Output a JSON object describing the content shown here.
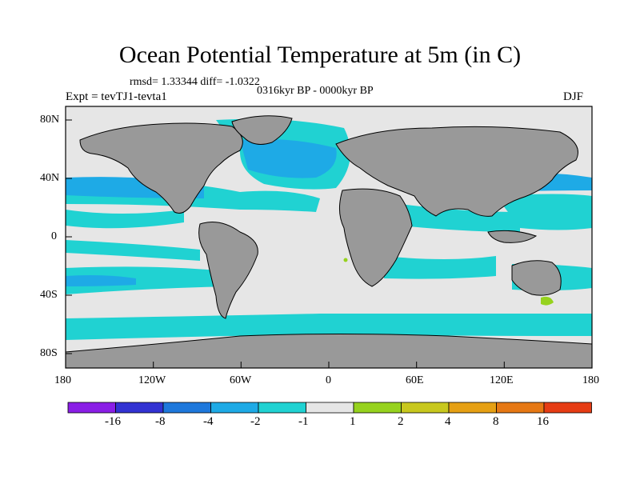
{
  "header": {
    "title": "Ocean Potential Temperature at 5m (in C)",
    "stats": "rmsd= 1.33344 diff= -1.0322",
    "period": "0316kyr BP - 0000kyr BP",
    "experiment": "Expt = tevTJ1-tevta1",
    "season": "DJF"
  },
  "axes": {
    "x_ticks": [
      "180",
      "120W",
      "60W",
      "0",
      "60E",
      "120E",
      "180"
    ],
    "y_ticks": [
      "80N",
      "40N",
      "0",
      "40S",
      "80S"
    ]
  },
  "colorbar": {
    "labels": [
      "-16",
      "-8",
      "-4",
      "-2",
      "-1",
      "1",
      "2",
      "4",
      "8",
      "16"
    ],
    "colors": [
      "#8a1ee6",
      "#3232d2",
      "#1e78dc",
      "#1eaae6",
      "#20d2d2",
      "#e6e6e6",
      "#96d21e",
      "#c8c81e",
      "#e6a014",
      "#e67814",
      "#e63c14"
    ]
  },
  "map_colors": {
    "land": "#999999",
    "neutral": "#e6e6e6",
    "cool_light": "#20d2d2",
    "cool_mid": "#1eaae6",
    "cool_strong": "#1e78dc",
    "warm": "#96d21e",
    "frame": "#000000"
  }
}
